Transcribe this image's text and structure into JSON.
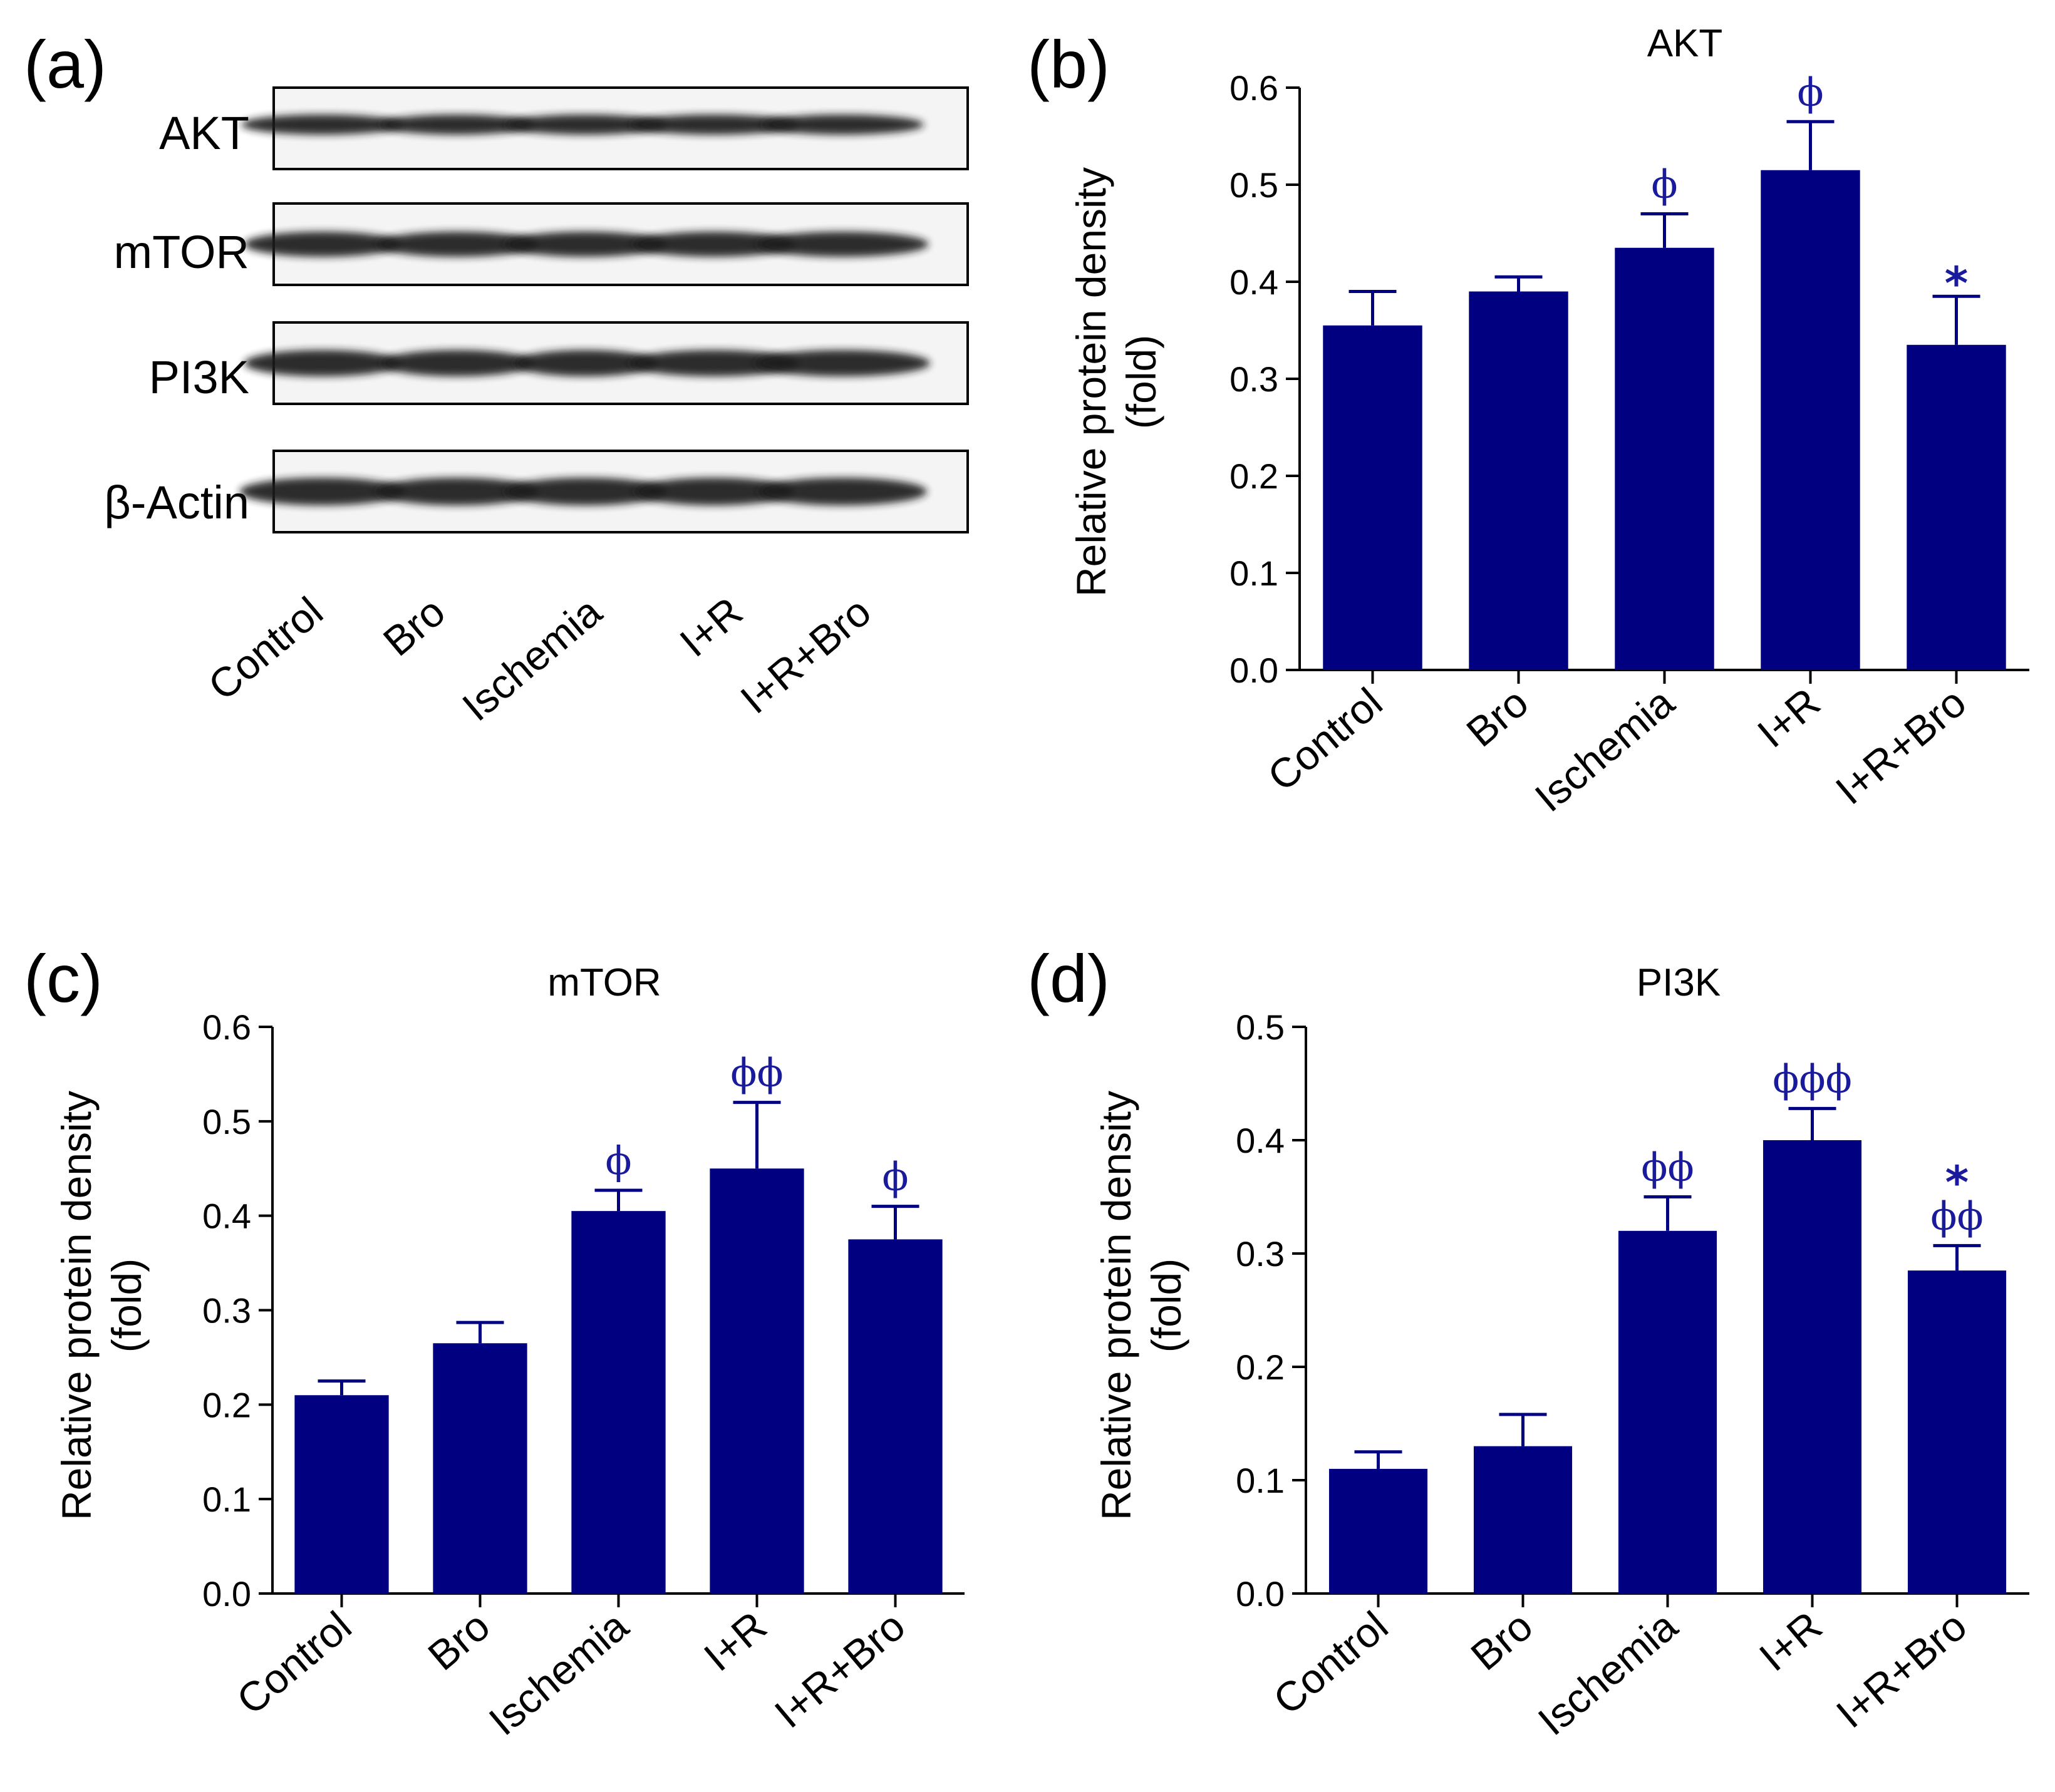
{
  "colors": {
    "bar": "#000080",
    "annotation": "#1a1a9c",
    "axis": "#000000"
  },
  "blot": {
    "panel_label": "(a)",
    "rows": [
      "AKT",
      "mTOR",
      "PI3K",
      "β-Actin"
    ],
    "lanes": [
      "Control",
      "Bro",
      "Ischemia",
      "I+R",
      "I+R+Bro"
    ]
  },
  "chart_data": [
    {
      "panel_label": "(b)",
      "type": "bar",
      "title": "AKT",
      "categories": [
        "Control",
        "Bro",
        "Ischemia",
        "I+R",
        "I+R+Bro"
      ],
      "values": [
        0.355,
        0.39,
        0.435,
        0.515,
        0.335
      ],
      "errors": [
        0.035,
        0.015,
        0.035,
        0.05,
        0.05
      ],
      "annotations": [
        "",
        "",
        "ϕ",
        "ϕ",
        "*"
      ],
      "ylabel": [
        "Relative protein density",
        "(fold)"
      ],
      "ylim": [
        0,
        0.6
      ],
      "yticks": [
        "0.0",
        "0.1",
        "0.2",
        "0.3",
        "0.4",
        "0.5",
        "0.6"
      ]
    },
    {
      "panel_label": "(c)",
      "type": "bar",
      "title": "mTOR",
      "categories": [
        "Control",
        "Bro",
        "Ischemia",
        "I+R",
        "I+R+Bro"
      ],
      "values": [
        0.21,
        0.265,
        0.405,
        0.45,
        0.375
      ],
      "errors": [
        0.015,
        0.022,
        0.022,
        0.07,
        0.035
      ],
      "annotations": [
        "",
        "",
        "ϕ",
        "ϕϕ",
        "ϕ"
      ],
      "ylabel": [
        "Relative protein density",
        "(fold)"
      ],
      "ylim": [
        0,
        0.6
      ],
      "yticks": [
        "0.0",
        "0.1",
        "0.2",
        "0.3",
        "0.4",
        "0.5",
        "0.6"
      ]
    },
    {
      "panel_label": "(d)",
      "type": "bar",
      "title": "PI3K",
      "categories": [
        "Control",
        "Bro",
        "Ischemia",
        "I+R",
        "I+R+Bro"
      ],
      "values": [
        0.11,
        0.13,
        0.32,
        0.4,
        0.285
      ],
      "errors": [
        0.015,
        0.028,
        0.03,
        0.028,
        0.022
      ],
      "annotations": [
        "",
        "",
        "ϕϕ",
        "ϕϕϕ",
        "*|ϕϕ"
      ],
      "ylabel": [
        "Relative protein density",
        "(fold)"
      ],
      "ylim": [
        0,
        0.5
      ],
      "yticks": [
        "0.0",
        "0.1",
        "0.2",
        "0.3",
        "0.4",
        "0.5"
      ]
    }
  ]
}
